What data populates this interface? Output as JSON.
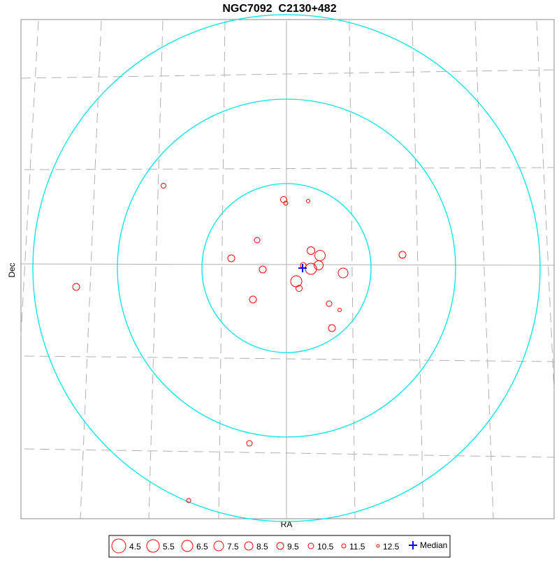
{
  "chart_data": {
    "type": "scatter",
    "title": "NGC7092  C2130+482",
    "xlabel": "RA",
    "ylabel": "Dec",
    "xlim": [
      -380,
      383
    ],
    "ylim": [
      -359,
      356
    ],
    "rings": [
      121,
      242,
      363
    ],
    "ring_color": "#00e5e5",
    "x": [
      -176,
      -4,
      -1,
      31,
      -42,
      35,
      48,
      -79,
      166,
      24,
      35,
      46,
      -34,
      81,
      14,
      18,
      -301,
      -48,
      61,
      76,
      65,
      -53,
      -140
    ],
    "y": [
      118,
      98,
      93,
      96,
      40,
      25,
      18,
      14,
      19,
      4,
      -1,
      4,
      -2,
      -7,
      -19,
      -29,
      -27,
      -45,
      -51,
      -60,
      -86,
      -251,
      -333
    ],
    "mag": [
      11,
      10,
      11.5,
      12,
      10.5,
      9,
      7,
      9.5,
      9.5,
      10.5,
      6.5,
      8,
      9.5,
      7.5,
      6.5,
      10,
      9.5,
      9.5,
      10.5,
      12,
      9.5,
      10.5,
      11.5
    ],
    "star_color": "#ff0000",
    "median": {
      "x": 23,
      "y": 0
    },
    "median_color": "#0000ff",
    "legend_mags": [
      4.5,
      5.5,
      6.5,
      7.5,
      8.5,
      9.5,
      10.5,
      11.5,
      12.5
    ],
    "median_label": "Median"
  }
}
